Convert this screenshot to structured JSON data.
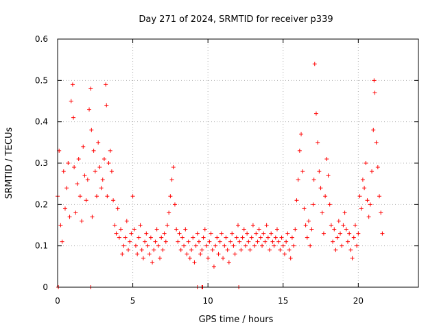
{
  "chart_data": {
    "type": "scatter",
    "title": "Day 271 of 2024, SRMTID for receiver p339",
    "xlabel": "GPS time / hours",
    "ylabel": "SRMTID / TECUs",
    "xlim": [
      0,
      24
    ],
    "ylim": [
      0,
      0.6
    ],
    "xticks": [
      0,
      5,
      10,
      15,
      20
    ],
    "xtick_labels": [
      "0",
      "5",
      "10",
      "15",
      "20"
    ],
    "yticks": [
      0,
      0.1,
      0.2,
      0.3,
      0.4,
      0.5,
      0.6
    ],
    "ytick_labels": [
      "0",
      "0.1",
      "0.2",
      "0.3",
      "0.4",
      "0.5",
      "0.6"
    ],
    "grid": true,
    "marker": "plus",
    "color": "#ff0000",
    "series": [
      {
        "name": "SRMTID p339",
        "x": [
          0.0,
          0.1,
          0.2,
          0.3,
          0.4,
          0.5,
          0.6,
          0.7,
          0.8,
          0.9,
          1.0,
          1.05,
          1.1,
          1.2,
          1.3,
          1.4,
          1.5,
          1.6,
          1.7,
          1.8,
          1.9,
          2.0,
          2.1,
          2.2,
          2.25,
          2.3,
          2.4,
          2.5,
          2.6,
          2.7,
          2.8,
          2.9,
          3.0,
          3.1,
          3.2,
          3.25,
          3.3,
          3.4,
          3.5,
          3.6,
          3.7,
          3.8,
          3.9,
          4.0,
          4.1,
          4.2,
          4.3,
          4.4,
          4.5,
          4.6,
          4.7,
          4.8,
          4.9,
          5.0,
          5.1,
          5.2,
          5.3,
          5.4,
          5.5,
          5.6,
          5.7,
          5.8,
          5.9,
          6.0,
          6.1,
          6.2,
          6.3,
          6.4,
          6.5,
          6.6,
          6.7,
          6.8,
          6.9,
          7.0,
          7.1,
          7.2,
          7.3,
          7.4,
          7.5,
          7.6,
          7.7,
          7.8,
          7.9,
          8.0,
          8.1,
          8.2,
          8.3,
          8.4,
          8.5,
          8.6,
          8.7,
          8.8,
          8.9,
          9.0,
          9.1,
          9.2,
          9.3,
          9.4,
          9.5,
          9.6,
          9.7,
          9.8,
          9.9,
          10.0,
          10.1,
          10.2,
          10.3,
          10.4,
          10.5,
          10.6,
          10.7,
          10.8,
          10.9,
          11.0,
          11.1,
          11.2,
          11.3,
          11.4,
          11.5,
          11.6,
          11.7,
          11.8,
          11.9,
          12.0,
          12.1,
          12.2,
          12.3,
          12.4,
          12.5,
          12.6,
          12.7,
          12.8,
          12.9,
          13.0,
          13.1,
          13.2,
          13.3,
          13.4,
          13.5,
          13.6,
          13.7,
          13.8,
          13.9,
          14.0,
          14.1,
          14.2,
          14.3,
          14.4,
          14.5,
          14.6,
          14.7,
          14.8,
          14.9,
          15.0,
          15.1,
          15.2,
          15.3,
          15.4,
          15.5,
          15.6,
          15.7,
          15.8,
          15.9,
          16.0,
          16.1,
          16.2,
          16.3,
          16.4,
          16.5,
          16.6,
          16.7,
          16.8,
          16.9,
          17.0,
          17.05,
          17.1,
          17.2,
          17.3,
          17.4,
          17.5,
          17.6,
          17.7,
          17.8,
          17.9,
          18.0,
          18.1,
          18.2,
          18.3,
          18.4,
          18.5,
          18.6,
          18.7,
          18.8,
          18.9,
          19.0,
          19.1,
          19.2,
          19.3,
          19.4,
          19.5,
          19.6,
          19.7,
          19.8,
          19.9,
          20.0,
          20.1,
          20.2,
          20.3,
          20.4,
          20.5,
          20.6,
          20.7,
          20.8,
          20.9,
          21.0,
          21.05,
          21.1,
          21.2,
          21.3,
          21.4,
          21.5,
          21.6,
          0.05,
          2.2,
          9.3,
          9.6,
          9.65,
          12.05
        ],
        "y": [
          0.22,
          0.33,
          0.15,
          0.11,
          0.28,
          0.19,
          0.24,
          0.3,
          0.17,
          0.45,
          0.49,
          0.41,
          0.29,
          0.18,
          0.25,
          0.31,
          0.22,
          0.16,
          0.34,
          0.27,
          0.21,
          0.26,
          0.43,
          0.48,
          0.38,
          0.17,
          0.33,
          0.28,
          0.22,
          0.35,
          0.29,
          0.24,
          0.26,
          0.31,
          0.49,
          0.44,
          0.22,
          0.3,
          0.33,
          0.28,
          0.21,
          0.15,
          0.13,
          0.19,
          0.12,
          0.14,
          0.08,
          0.1,
          0.12,
          0.16,
          0.09,
          0.11,
          0.13,
          0.22,
          0.14,
          0.1,
          0.08,
          0.12,
          0.15,
          0.09,
          0.07,
          0.11,
          0.13,
          0.1,
          0.08,
          0.12,
          0.06,
          0.09,
          0.11,
          0.14,
          0.1,
          0.07,
          0.12,
          0.09,
          0.13,
          0.11,
          0.15,
          0.18,
          0.22,
          0.26,
          0.29,
          0.2,
          0.14,
          0.11,
          0.13,
          0.09,
          0.12,
          0.1,
          0.14,
          0.08,
          0.11,
          0.07,
          0.09,
          0.12,
          0.06,
          0.1,
          0.13,
          0.11,
          0.08,
          0.09,
          0.12,
          0.14,
          0.1,
          0.07,
          0.11,
          0.13,
          0.09,
          0.05,
          0.1,
          0.12,
          0.08,
          0.11,
          0.13,
          0.07,
          0.1,
          0.12,
          0.09,
          0.06,
          0.11,
          0.13,
          0.1,
          0.08,
          0.12,
          0.15,
          0.11,
          0.09,
          0.12,
          0.14,
          0.1,
          0.13,
          0.11,
          0.09,
          0.12,
          0.15,
          0.1,
          0.13,
          0.11,
          0.14,
          0.12,
          0.1,
          0.13,
          0.11,
          0.15,
          0.12,
          0.09,
          0.13,
          0.11,
          0.1,
          0.12,
          0.14,
          0.11,
          0.09,
          0.12,
          0.1,
          0.08,
          0.11,
          0.13,
          0.09,
          0.07,
          0.12,
          0.1,
          0.14,
          0.21,
          0.26,
          0.33,
          0.37,
          0.28,
          0.19,
          0.15,
          0.12,
          0.16,
          0.1,
          0.14,
          0.2,
          0.26,
          0.54,
          0.42,
          0.35,
          0.28,
          0.24,
          0.18,
          0.13,
          0.22,
          0.31,
          0.27,
          0.2,
          0.15,
          0.11,
          0.14,
          0.09,
          0.12,
          0.16,
          0.13,
          0.1,
          0.15,
          0.18,
          0.14,
          0.11,
          0.13,
          0.09,
          0.07,
          0.12,
          0.15,
          0.1,
          0.13,
          0.22,
          0.19,
          0.26,
          0.24,
          0.3,
          0.21,
          0.17,
          0.2,
          0.28,
          0.38,
          0.5,
          0.47,
          0.35,
          0.29,
          0.22,
          0.18,
          0.13,
          0.0,
          0.0,
          0.0,
          0.0,
          0.0,
          0.0
        ]
      }
    ]
  }
}
